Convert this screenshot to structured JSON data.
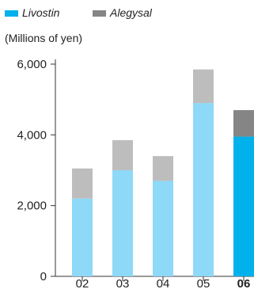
{
  "chart_data": {
    "type": "bar",
    "stacked": true,
    "units_label": "(Millions of yen)",
    "categories": [
      "02",
      "03",
      "04",
      "05",
      "06"
    ],
    "highlight_category": "06",
    "series": [
      {
        "name": "Livostin",
        "values": [
          2200,
          3000,
          2700,
          4900,
          3950
        ],
        "color": "#8ed8f8",
        "highlight_color": "#00b1eb"
      },
      {
        "name": "Alegysal",
        "values": [
          850,
          850,
          700,
          950,
          750
        ],
        "color": "#bdbdbd",
        "highlight_color": "#858585"
      }
    ],
    "ylim": [
      0,
      6000
    ],
    "yticks": [
      0,
      2000,
      4000,
      6000
    ],
    "ytick_labels": [
      "0",
      "2,000",
      "4,000",
      "6,000"
    ],
    "grid": false,
    "legend_position": "top-left"
  }
}
